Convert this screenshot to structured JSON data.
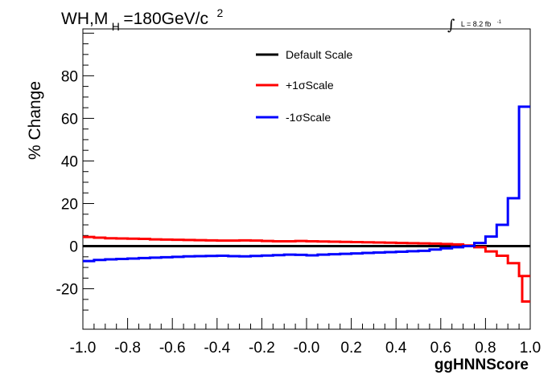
{
  "title": {
    "main": "WH,M",
    "subscript": "H",
    "rest": "=180GeV/c",
    "superscript": "2"
  },
  "luminosity": {
    "integral_symbol": "∫",
    "text": "L = 8.2 fb",
    "superscript": "-1"
  },
  "chart_data": {
    "type": "line",
    "style": "step-histogram",
    "xlabel": "ggHNNScore",
    "ylabel": "% Change",
    "xlim": [
      -1.0,
      1.0
    ],
    "ylim": [
      -39,
      102
    ],
    "x_ticks": [
      "-1.0",
      "-0.8",
      "-0.6",
      "-0.4",
      "-0.2",
      "-0.0",
      "0.2",
      "0.4",
      "0.6",
      "0.8",
      "1.0"
    ],
    "y_ticks": [
      "-20",
      "0",
      "20",
      "40",
      "60",
      "80"
    ],
    "bin_edges": [
      -1.0,
      -0.95,
      -0.9,
      -0.85,
      -0.8,
      -0.75,
      -0.7,
      -0.65,
      -0.6,
      -0.55,
      -0.5,
      -0.45,
      -0.4,
      -0.35,
      -0.3,
      -0.25,
      -0.2,
      -0.15,
      -0.1,
      -0.05,
      0.0,
      0.05,
      0.1,
      0.15,
      0.2,
      0.25,
      0.3,
      0.35,
      0.4,
      0.45,
      0.5,
      0.55,
      0.6,
      0.65,
      0.7,
      0.75,
      0.8,
      0.85,
      0.9,
      0.95,
      1.0
    ],
    "series": [
      {
        "name": "Default Scale",
        "color": "#000000",
        "values": [
          0,
          0,
          0,
          0,
          0,
          0,
          0,
          0,
          0,
          0,
          0,
          0,
          0,
          0,
          0,
          0,
          0,
          0,
          0,
          0,
          0,
          0,
          0,
          0,
          0,
          0,
          0,
          0,
          0,
          0,
          0,
          0,
          0,
          0,
          0,
          0,
          0,
          0,
          0,
          0
        ]
      },
      {
        "name": "+1σScale",
        "color": "#ff0000",
        "values": [
          4.3,
          4.0,
          3.7,
          3.6,
          3.5,
          3.4,
          3.2,
          3.1,
          3.0,
          2.9,
          2.8,
          2.7,
          2.6,
          2.6,
          2.7,
          2.6,
          2.4,
          2.3,
          2.3,
          2.4,
          2.3,
          2.2,
          2.1,
          2.0,
          1.9,
          1.8,
          1.7,
          1.6,
          1.5,
          1.4,
          1.3,
          1.2,
          1.0,
          0.8,
          0.3,
          -0.5,
          -2.5,
          -4.5,
          -8.0,
          -14.0
        ]
      },
      {
        "name": "-1σScale",
        "color": "#0000ff",
        "values": [
          -7.0,
          -6.5,
          -6.2,
          -6.0,
          -5.8,
          -5.6,
          -5.4,
          -5.2,
          -5.0,
          -4.8,
          -4.7,
          -4.6,
          -4.5,
          -4.7,
          -4.8,
          -4.6,
          -4.4,
          -4.2,
          -4.0,
          -4.1,
          -4.3,
          -4.0,
          -3.8,
          -3.6,
          -3.4,
          -3.2,
          -3.0,
          -2.8,
          -2.6,
          -2.4,
          -2.2,
          -1.6,
          -1.0,
          -0.5,
          0.0,
          1.5,
          4.5,
          10.0,
          22.5,
          65.5
        ]
      }
    ],
    "last_bin_extra": {
      "+1σScale": -26.0
    },
    "legend_position": "top-center"
  }
}
